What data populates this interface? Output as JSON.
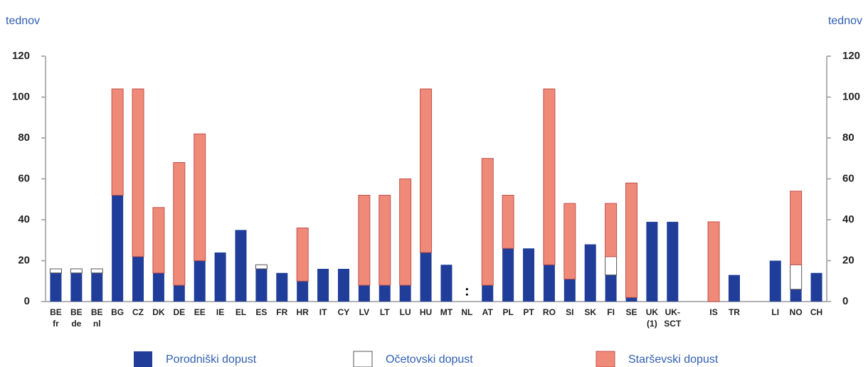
{
  "chart_data": {
    "type": "stacked_bar",
    "y_label": "tednov",
    "y2_label": "tednov",
    "categories": [
      "BE fr",
      "BE de",
      "BE nl",
      "BG",
      "CZ",
      "DK",
      "DE",
      "EE",
      "IE",
      "EL",
      "ES",
      "FR",
      "HR",
      "IT",
      "CY",
      "LV",
      "LT",
      "LU",
      "HU",
      "MT",
      "NL",
      "AT",
      "PL",
      "PT",
      "RO",
      "SI",
      "SK",
      "FI",
      "SE",
      "UK (1)",
      "UK-SCT",
      null,
      "IS",
      "TR",
      null,
      "LI",
      "NO",
      "CH"
    ],
    "series": [
      {
        "name": "Porodniški dopust",
        "color": "#1f3d99",
        "values": [
          14,
          14,
          14,
          52,
          22,
          14,
          8,
          20,
          24,
          35,
          16,
          14,
          10,
          16,
          16,
          8,
          8,
          8,
          24,
          18,
          null,
          8,
          26,
          26,
          18,
          11,
          28,
          13,
          2,
          39,
          39,
          null,
          0,
          13,
          null,
          20,
          6,
          14
        ]
      },
      {
        "name": "Očetovski dopust",
        "color": "#ffffff",
        "values": [
          2,
          2,
          2,
          0,
          0,
          0,
          0,
          0,
          0,
          0,
          2,
          0,
          0,
          0,
          0,
          0,
          0,
          0,
          0,
          0,
          null,
          0,
          0,
          0,
          0,
          0,
          0,
          9,
          0,
          0,
          0,
          null,
          0,
          0,
          null,
          0,
          12,
          0
        ]
      },
      {
        "name": "Starševski dopust",
        "color": "#f08a78",
        "values": [
          0,
          0,
          0,
          52,
          82,
          32,
          60,
          62,
          0,
          0,
          0,
          0,
          26,
          0,
          0,
          44,
          44,
          52,
          80,
          0,
          null,
          62,
          26,
          0,
          86,
          37,
          0,
          26,
          56,
          0,
          0,
          null,
          39,
          0,
          null,
          0,
          36,
          0
        ]
      }
    ],
    "annotations": [
      {
        "category": "NL",
        "text": ":"
      }
    ],
    "ylim": [
      0,
      120
    ],
    "yticks": [
      0,
      20,
      40,
      60,
      80,
      100,
      120
    ],
    "y2lim": [
      0,
      120
    ],
    "y2ticks": [
      0,
      20,
      40,
      60,
      80,
      100,
      120
    ],
    "grid": false
  }
}
